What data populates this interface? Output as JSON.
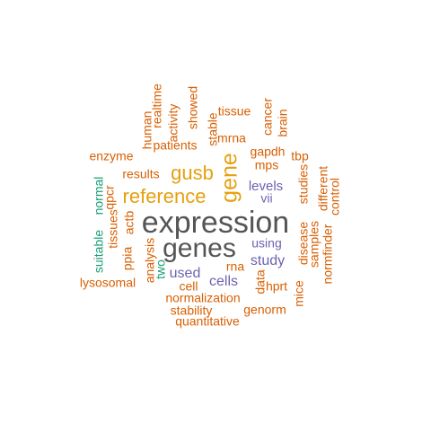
{
  "chart_data": {
    "type": "wordcloud",
    "palette": {
      "gray": "#555555",
      "gold": "#E6A00F",
      "orange": "#D95F02",
      "purple": "#6B63B0",
      "green": "#1B9E77"
    },
    "words": [
      {
        "text": "expression",
        "freq": 30,
        "color": "#555555"
      },
      {
        "text": "genes",
        "freq": 27,
        "color": "#555555"
      },
      {
        "text": "gene",
        "freq": 21,
        "color": "#E6A00F"
      },
      {
        "text": "reference",
        "freq": 19,
        "color": "#E6A00F"
      },
      {
        "text": "gusb",
        "freq": 18,
        "color": "#E6A00F"
      },
      {
        "text": "cells",
        "freq": 12,
        "color": "#6B63B0"
      },
      {
        "text": "used",
        "freq": 12,
        "color": "#6B63B0"
      },
      {
        "text": "levels",
        "freq": 11,
        "color": "#6B63B0"
      },
      {
        "text": "study",
        "freq": 11,
        "color": "#6B63B0"
      },
      {
        "text": "using",
        "freq": 10,
        "color": "#6B63B0"
      },
      {
        "text": "vii",
        "freq": 10,
        "color": "#6B63B0"
      },
      {
        "text": "normalization",
        "freq": 10,
        "color": "#D95F02"
      },
      {
        "text": "mps",
        "freq": 10,
        "color": "#D95F02"
      },
      {
        "text": "patients",
        "freq": 10,
        "color": "#D95F02"
      },
      {
        "text": "gapdh",
        "freq": 10,
        "color": "#D95F02"
      },
      {
        "text": "analysis",
        "freq": 10,
        "color": "#D95F02"
      },
      {
        "text": "qpcr",
        "freq": 10,
        "color": "#D95F02"
      },
      {
        "text": "cell",
        "freq": 9,
        "color": "#D95F02"
      },
      {
        "text": "hprt",
        "freq": 9,
        "color": "#D95F02"
      },
      {
        "text": "data",
        "freq": 9,
        "color": "#D95F02"
      },
      {
        "text": "results",
        "freq": 9,
        "color": "#D95F02"
      },
      {
        "text": "mrna",
        "freq": 9,
        "color": "#D95F02"
      },
      {
        "text": "stable",
        "freq": 9,
        "color": "#D95F02"
      },
      {
        "text": "human",
        "freq": 9,
        "color": "#D95F02"
      },
      {
        "text": "different",
        "freq": 9,
        "color": "#D95F02"
      },
      {
        "text": "samples",
        "freq": 9,
        "color": "#D95F02"
      },
      {
        "text": "studies",
        "freq": 9,
        "color": "#D95F02"
      },
      {
        "text": "tissues",
        "freq": 9,
        "color": "#D95F02"
      },
      {
        "text": "actb",
        "freq": 9,
        "color": "#D95F02"
      },
      {
        "text": "ppia",
        "freq": 9,
        "color": "#D95F02"
      },
      {
        "text": "stability",
        "freq": 9,
        "color": "#D95F02"
      },
      {
        "text": "quantitative",
        "freq": 9,
        "color": "#D95F02"
      },
      {
        "text": "genorm",
        "freq": 9,
        "color": "#D95F02"
      },
      {
        "text": "disease",
        "freq": 9,
        "color": "#D95F02"
      },
      {
        "text": "enzyme",
        "freq": 9,
        "color": "#D95F02"
      },
      {
        "text": "lysosomal",
        "freq": 9,
        "color": "#D95F02"
      },
      {
        "text": "normfinder",
        "freq": 9,
        "color": "#D95F02"
      },
      {
        "text": "control",
        "freq": 9,
        "color": "#D95F02"
      },
      {
        "text": "mice",
        "freq": 9,
        "color": "#D95F02"
      },
      {
        "text": "rna",
        "freq": 9,
        "color": "#D95F02"
      },
      {
        "text": "tbp",
        "freq": 9,
        "color": "#D95F02"
      },
      {
        "text": "tissue",
        "freq": 9,
        "color": "#D95F02"
      },
      {
        "text": "cancer",
        "freq": 9,
        "color": "#D95F02"
      },
      {
        "text": "brain",
        "freq": 9,
        "color": "#D95F02"
      },
      {
        "text": "showed",
        "freq": 9,
        "color": "#D95F02"
      },
      {
        "text": "activity",
        "freq": 9,
        "color": "#D95F02"
      },
      {
        "text": "realtime",
        "freq": 9,
        "color": "#D95F02"
      },
      {
        "text": "normal",
        "freq": 9,
        "color": "#1B9E77"
      },
      {
        "text": "suitable",
        "freq": 9,
        "color": "#1B9E77"
      },
      {
        "text": "two",
        "freq": 9,
        "color": "#1B9E77"
      }
    ]
  }
}
